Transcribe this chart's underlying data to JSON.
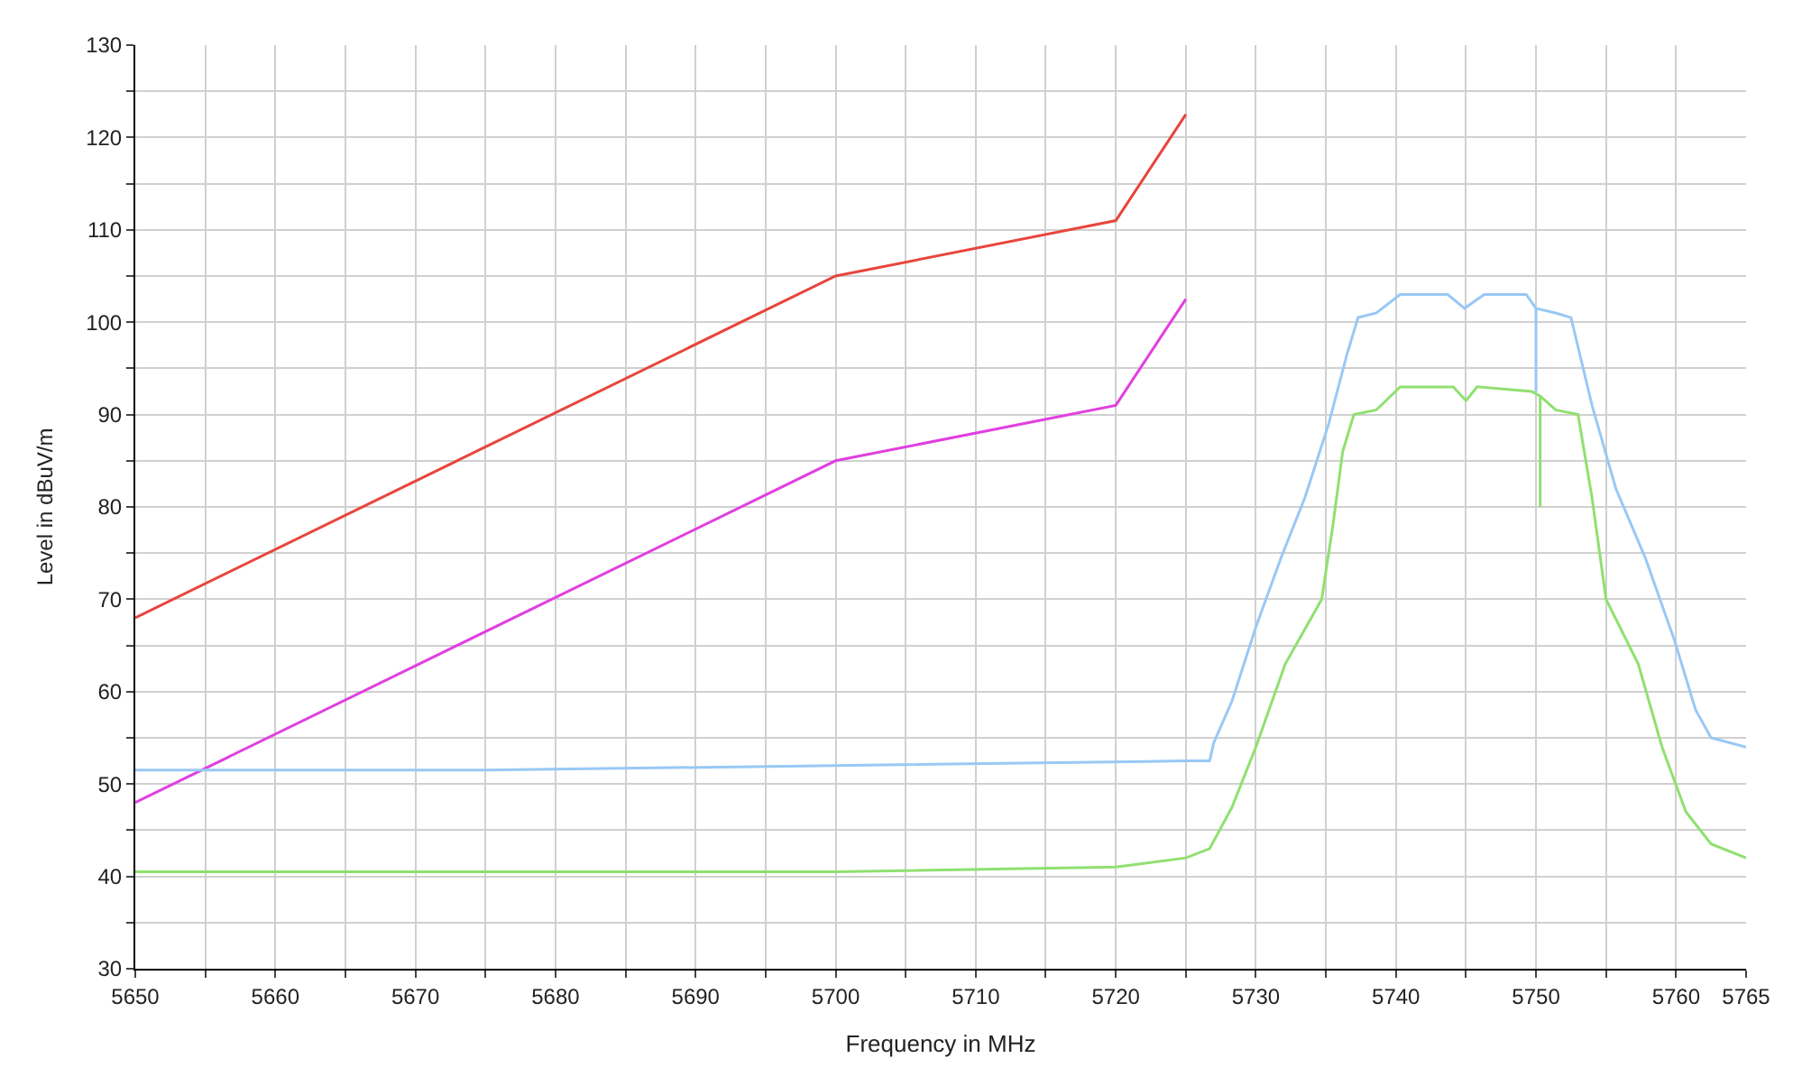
{
  "chart_data": {
    "type": "line",
    "xlabel": "Frequency in MHz",
    "ylabel": "Level in dBuV/m",
    "xlim": [
      5650,
      5765
    ],
    "ylim": [
      30,
      130
    ],
    "xticks": [
      5650,
      {
        "value": 5655,
        "label": null
      },
      5660,
      {
        "value": 5665,
        "label": null
      },
      5670,
      {
        "value": 5675,
        "label": null
      },
      5680,
      {
        "value": 5685,
        "label": null
      },
      5690,
      {
        "value": 5695,
        "label": null
      },
      5700,
      {
        "value": 5705,
        "label": null
      },
      5710,
      {
        "value": 5715,
        "label": null
      },
      5720,
      {
        "value": 5725,
        "label": null
      },
      5730,
      {
        "value": 5735,
        "label": null
      },
      5740,
      {
        "value": 5745,
        "label": null
      },
      5750,
      {
        "value": 5755,
        "label": null
      },
      5760,
      5765
    ],
    "yticks": [
      30,
      {
        "value": 35,
        "label": null
      },
      40,
      {
        "value": 45,
        "label": null
      },
      50,
      {
        "value": 55,
        "label": null
      },
      60,
      {
        "value": 65,
        "label": null
      },
      70,
      {
        "value": 75,
        "label": null
      },
      80,
      {
        "value": 85,
        "label": null
      },
      90,
      {
        "value": 95,
        "label": null
      },
      100,
      {
        "value": 105,
        "label": null
      },
      110,
      {
        "value": 115,
        "label": null
      },
      120,
      {
        "value": 125,
        "label": null
      },
      130
    ],
    "grid": true,
    "marker": "none",
    "line_style": "solid",
    "series": [
      {
        "color": "#e8453c",
        "x": [
          5650,
          5700,
          5720,
          5725
        ],
        "values": [
          68,
          105,
          111,
          122.5
        ]
      },
      {
        "color": "#e040e0",
        "x": [
          5650,
          5700,
          5720,
          5725
        ],
        "values": [
          48,
          85,
          91,
          102.5
        ]
      },
      {
        "color": "#99c8f5",
        "x": [
          5650,
          5675,
          5700,
          5725,
          5726.7,
          5727,
          5728.3,
          5730,
          5731.8,
          5733.5,
          5735.2,
          5736.5,
          5737.3,
          5738.6,
          5740.3,
          5743.7,
          5744.9,
          5746.3,
          5749.3,
          5750,
          5750,
          5750,
          5751.4,
          5752.5,
          5754,
          5755.7,
          5757.8,
          5759.9,
          5761.4,
          5762.5,
          5765
        ],
        "values": [
          51.5,
          51.5,
          52,
          52.5,
          52.5,
          54.5,
          59,
          67,
          74.5,
          81,
          89,
          96.5,
          100.5,
          101,
          103,
          103,
          101.5,
          103,
          103,
          101.5,
          92.5,
          101.5,
          101,
          100.5,
          91,
          82,
          74.5,
          65.5,
          58,
          55,
          54
        ]
      },
      {
        "color": "#90e070",
        "x": [
          5650,
          5700,
          5720,
          5725,
          5726.7,
          5728.3,
          5730,
          5732.1,
          5734.7,
          5735.5,
          5736.2,
          5737,
          5738.6,
          5740.3,
          5744.1,
          5745,
          5745.8,
          5749.7,
          5750.3,
          5750.3,
          5750.3,
          5751.4,
          5753,
          5754,
          5755,
          5757.3,
          5759,
          5760.7,
          5762.5,
          5765
        ],
        "values": [
          40.5,
          40.5,
          41,
          42,
          43,
          47.5,
          54,
          63,
          70,
          78,
          86,
          90,
          90.5,
          93,
          93,
          91.5,
          93,
          92.5,
          92,
          80,
          92,
          90.5,
          90,
          81,
          70,
          63,
          54,
          47,
          43.5,
          42
        ]
      }
    ]
  }
}
